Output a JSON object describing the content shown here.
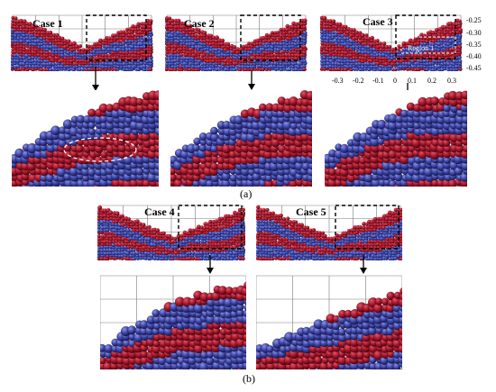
{
  "figure": {
    "part_a": "(a)",
    "part_b": "(b)"
  },
  "panels": [
    {
      "label": "Case 1"
    },
    {
      "label": "Case 2"
    },
    {
      "label": "Case 3",
      "region_label": "Region 1"
    },
    {
      "label": "Case 4"
    },
    {
      "label": "Case 5"
    }
  ],
  "case3_axes": {
    "x_ticks": [
      "-0.3",
      "-0.2",
      "-0.1",
      "0",
      "0.1",
      "0.2",
      "0.3"
    ],
    "y_ticks": [
      "-0.25",
      "-0.30",
      "-0.35",
      "-0.40",
      "-0.45"
    ]
  },
  "colors": {
    "particle_red": "#a8162a",
    "particle_blue": "#3b45a8",
    "grid": "#7a7a7a"
  }
}
